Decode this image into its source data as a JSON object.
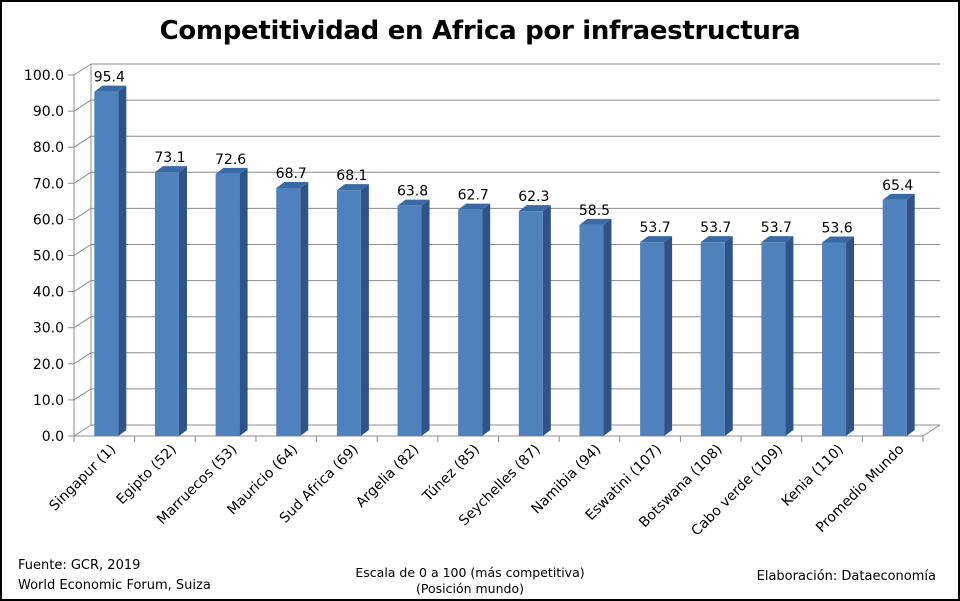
{
  "chart_data": {
    "type": "bar",
    "title": "Competitividad en Africa por infraestructura",
    "categories": [
      "Singapur (1)",
      "Egipto (52)",
      "Marruecos (53)",
      "Mauricio (64)",
      "Sud Africa (69)",
      "Argelia (82)",
      "Túnez (85)",
      "Seychelles (87)",
      "Namibia (94)",
      "Eswatini (107)",
      "Botswana (108)",
      "Cabo verde (109)",
      "Kenia (110)",
      "Promedio Mundo"
    ],
    "values": [
      95.4,
      73.1,
      72.6,
      68.7,
      68.1,
      63.8,
      62.7,
      62.3,
      58.5,
      53.7,
      53.7,
      53.7,
      53.6,
      65.4
    ],
    "value_labels": [
      "95.4",
      "73.1",
      "72.6",
      "68.7",
      "68.1",
      "63.8",
      "62.7",
      "62.3",
      "58.5",
      "53.7",
      "53.7",
      "53.7",
      "53.6",
      "65.4"
    ],
    "yticks": [
      "0.0",
      "10.0",
      "20.0",
      "30.0",
      "40.0",
      "50.0",
      "60.0",
      "70.0",
      "80.0",
      "90.0",
      "100.0"
    ],
    "ylim": [
      0,
      100
    ],
    "grid": true,
    "bar_color": "#4f81bd",
    "bar_side_color": "#2f5387",
    "bar_top_color": "#3a6aa6"
  },
  "footer": {
    "source_line1": "Fuente:  GCR, 2019",
    "source_line2": "World Economic Forum, Suiza",
    "scale_line1": "Escala de 0 a 100 (más competitiva)",
    "scale_line2": "(Posición mundo)",
    "credit": "Elaboración: Dataeconomía"
  }
}
